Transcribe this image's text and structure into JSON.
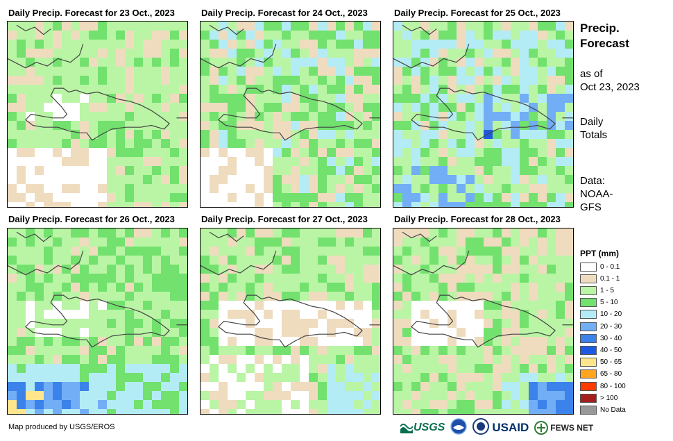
{
  "panels": [
    {
      "title": "Daily Precip. Forecast for 23 Oct., 2023",
      "seed": 11,
      "profile": "d23"
    },
    {
      "title": "Daily Precip. Forecast for 24 Oct., 2023",
      "seed": 22,
      "profile": "d24"
    },
    {
      "title": "Daily Precip. Forecast for 25 Oct., 2023",
      "seed": 33,
      "profile": "d25"
    },
    {
      "title": "Daily Precip. Forecast for 26 Oct., 2023",
      "seed": 44,
      "profile": "d26"
    },
    {
      "title": "Daily Precip. Forecast for 27 Oct., 2023",
      "seed": 55,
      "profile": "d27"
    },
    {
      "title": "Daily Precip. Forecast for 28 Oct., 2023",
      "seed": 66,
      "profile": "d28"
    }
  ],
  "sidebar": {
    "title_line1": "Precip.",
    "title_line2": "Forecast",
    "asof_line1": "as of",
    "asof_line2": "Oct 23, 2023",
    "totals_line1": "Daily",
    "totals_line2": "Totals",
    "data_line1": "Data:",
    "data_line2": "NOAA-",
    "data_line3": "GFS"
  },
  "legend": {
    "title": "PPT (mm)",
    "classes": [
      {
        "label": "0 - 0.1",
        "color": "#ffffff"
      },
      {
        "label": "0.1 - 1",
        "color": "#efdcbe"
      },
      {
        "label": "1 - 5",
        "color": "#b9f5a5"
      },
      {
        "label": "5 - 10",
        "color": "#72e16e"
      },
      {
        "label": "10 - 20",
        "color": "#b4ecf5"
      },
      {
        "label": "20 - 30",
        "color": "#72aef5"
      },
      {
        "label": "30 - 40",
        "color": "#3c82eb"
      },
      {
        "label": "40 - 50",
        "color": "#1e5ae1"
      },
      {
        "label": "50 - 65",
        "color": "#ffe68c"
      },
      {
        "label": "65 - 80",
        "color": "#ffa51e"
      },
      {
        "label": "80 - 100",
        "color": "#ff3c00"
      },
      {
        "label": "> 100",
        "color": "#a51e1e"
      },
      {
        "label": "No Data",
        "color": "#999999"
      }
    ]
  },
  "footer": {
    "credit": "Map produced by USGS/EROS",
    "logo_usgs": "USGS",
    "logo_usaid": "USAID",
    "logo_fewsnet": "FEWS NET"
  }
}
